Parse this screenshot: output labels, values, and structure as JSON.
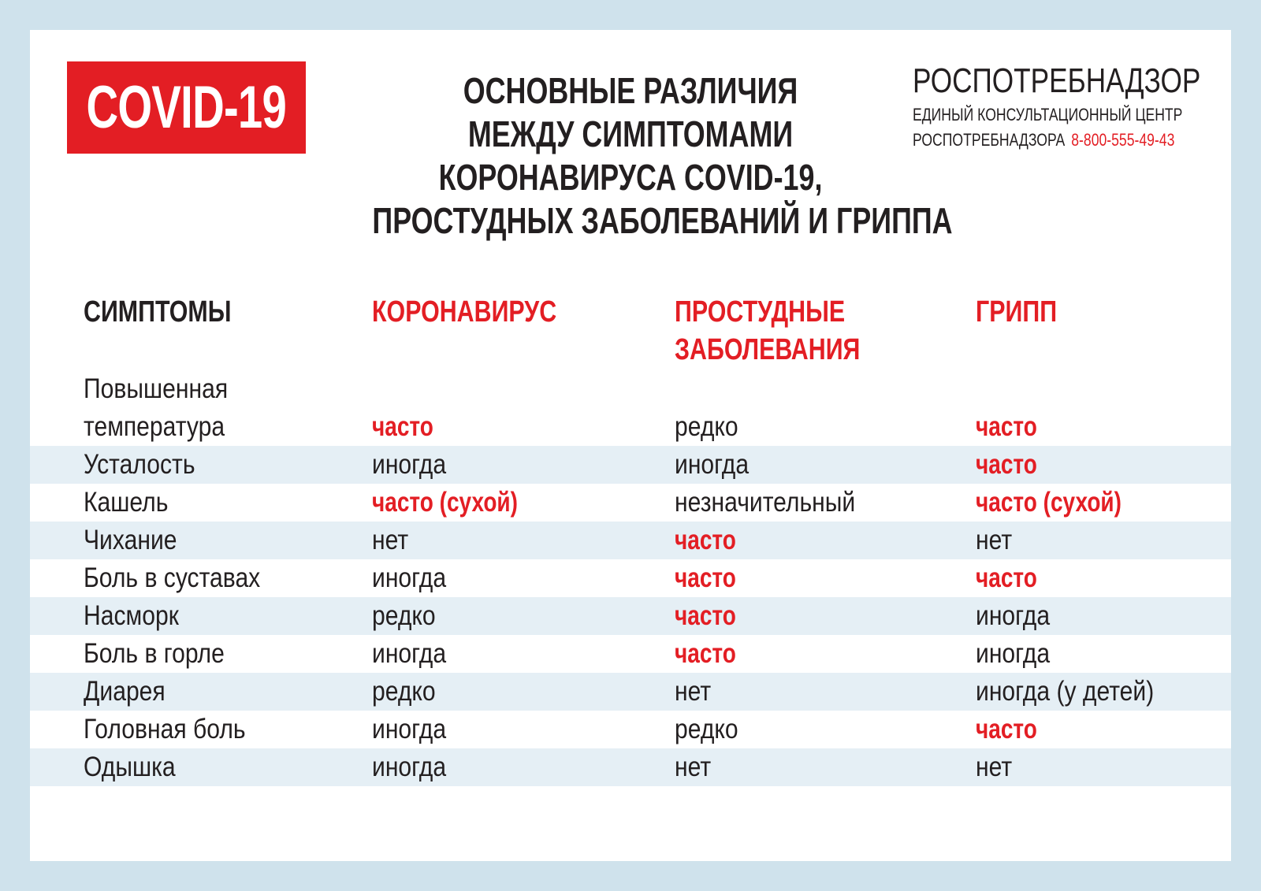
{
  "logo_text": "COVID-19",
  "title_lines": [
    "ОСНОВНЫЕ РАЗЛИЧИЯ",
    "МЕЖДУ СИМПТОМАМИ",
    "КОРОНАВИРУСА COVID-19,",
    "ПРОСТУДНЫХ ЗАБОЛЕВАНИЙ И ГРИППА"
  ],
  "org": {
    "name": "РОСПОТРЕБНАДЗОР",
    "line1": "ЕДИНЫЙ КОНСУЛЬТАЦИОННЫЙ ЦЕНТР",
    "line2": "РОСПОТРЕБНАДЗОРА",
    "phone": "8-800-555-49-43"
  },
  "colors": {
    "accent": "#e31e24",
    "stripe": "#e5eff5",
    "border": "#cfe2ec"
  },
  "table": {
    "headers": [
      "СИМПТОМЫ",
      "КОРОНАВИРУС",
      "ПРОСТУДНЫЕ\nЗАБОЛЕВАНИЯ",
      "ГРИПП"
    ],
    "header_lines": {
      "col2_line1": "ПРОСТУДНЫЕ",
      "col2_line2": "ЗАБОЛЕВАНИЯ"
    },
    "rows": [
      {
        "symptom": "Повышенная температура",
        "symptom_line1": "Повышенная",
        "symptom_line2": "температура",
        "values": [
          "часто",
          "редко",
          "часто"
        ],
        "emphasis": [
          true,
          false,
          true
        ]
      },
      {
        "symptom": "Усталость",
        "values": [
          "иногда",
          "иногда",
          "часто"
        ],
        "emphasis": [
          false,
          false,
          true
        ]
      },
      {
        "symptom": "Кашель",
        "values": [
          "часто (сухой)",
          "незначительный",
          "часто (сухой)"
        ],
        "emphasis": [
          true,
          false,
          true
        ]
      },
      {
        "symptom": "Чихание",
        "values": [
          "нет",
          "часто",
          "нет"
        ],
        "emphasis": [
          false,
          true,
          false
        ]
      },
      {
        "symptom": "Боль в суставах",
        "values": [
          "иногда",
          "часто",
          "часто"
        ],
        "emphasis": [
          false,
          true,
          true
        ]
      },
      {
        "symptom": "Насморк",
        "values": [
          "редко",
          "часто",
          "иногда"
        ],
        "emphasis": [
          false,
          true,
          false
        ]
      },
      {
        "symptom": "Боль в горле",
        "values": [
          "иногда",
          "часто",
          "иногда"
        ],
        "emphasis": [
          false,
          true,
          false
        ]
      },
      {
        "symptom": "Диарея",
        "values": [
          "редко",
          "нет",
          "иногда (у детей)"
        ],
        "emphasis": [
          false,
          false,
          false
        ]
      },
      {
        "symptom": "Головная боль",
        "values": [
          "иногда",
          "редко",
          "часто"
        ],
        "emphasis": [
          false,
          false,
          true
        ]
      },
      {
        "symptom": "Одышка",
        "values": [
          "иногда",
          "нет",
          "нет"
        ],
        "emphasis": [
          false,
          false,
          false
        ]
      }
    ]
  }
}
